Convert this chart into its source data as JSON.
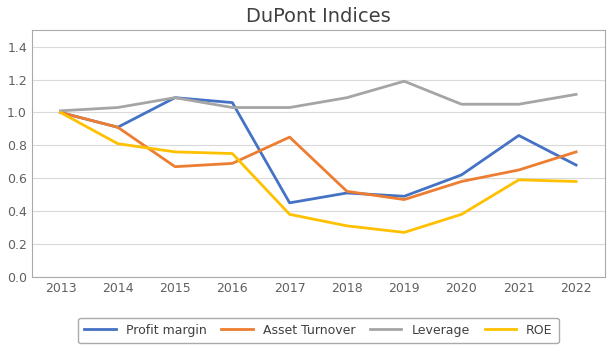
{
  "title": "DuPont Indices",
  "years": [
    2013,
    2014,
    2015,
    2016,
    2017,
    2018,
    2019,
    2020,
    2021,
    2022
  ],
  "series": {
    "Profit margin": [
      1.0,
      0.91,
      1.09,
      1.06,
      0.45,
      0.51,
      0.49,
      0.62,
      0.86,
      0.68
    ],
    "Asset Turnover": [
      1.0,
      0.91,
      0.67,
      0.69,
      0.85,
      0.52,
      0.47,
      0.58,
      0.65,
      0.76
    ],
    "Leverage": [
      1.01,
      1.03,
      1.09,
      1.03,
      1.03,
      1.09,
      1.19,
      1.05,
      1.05,
      1.11
    ],
    "ROE": [
      1.0,
      0.81,
      0.76,
      0.75,
      0.38,
      0.31,
      0.27,
      0.38,
      0.59,
      0.58
    ]
  },
  "series_order": [
    "Profit margin",
    "Asset Turnover",
    "Leverage",
    "ROE"
  ],
  "colors": {
    "Profit margin": "#4472C4",
    "Asset Turnover": "#ED7D31",
    "Leverage": "#A5A5A5",
    "ROE": "#FFC000"
  },
  "ylim": [
    0.0,
    1.5
  ],
  "yticks": [
    0.0,
    0.2,
    0.4,
    0.6,
    0.8,
    1.0,
    1.2,
    1.4
  ],
  "background_color": "#FFFFFF",
  "plot_bg_color": "#FFFFFF",
  "grid_color": "#D9D9D9",
  "title_fontsize": 14,
  "legend_fontsize": 9,
  "axis_fontsize": 9,
  "linewidth": 2.0,
  "border_color": "#AAAAAA"
}
